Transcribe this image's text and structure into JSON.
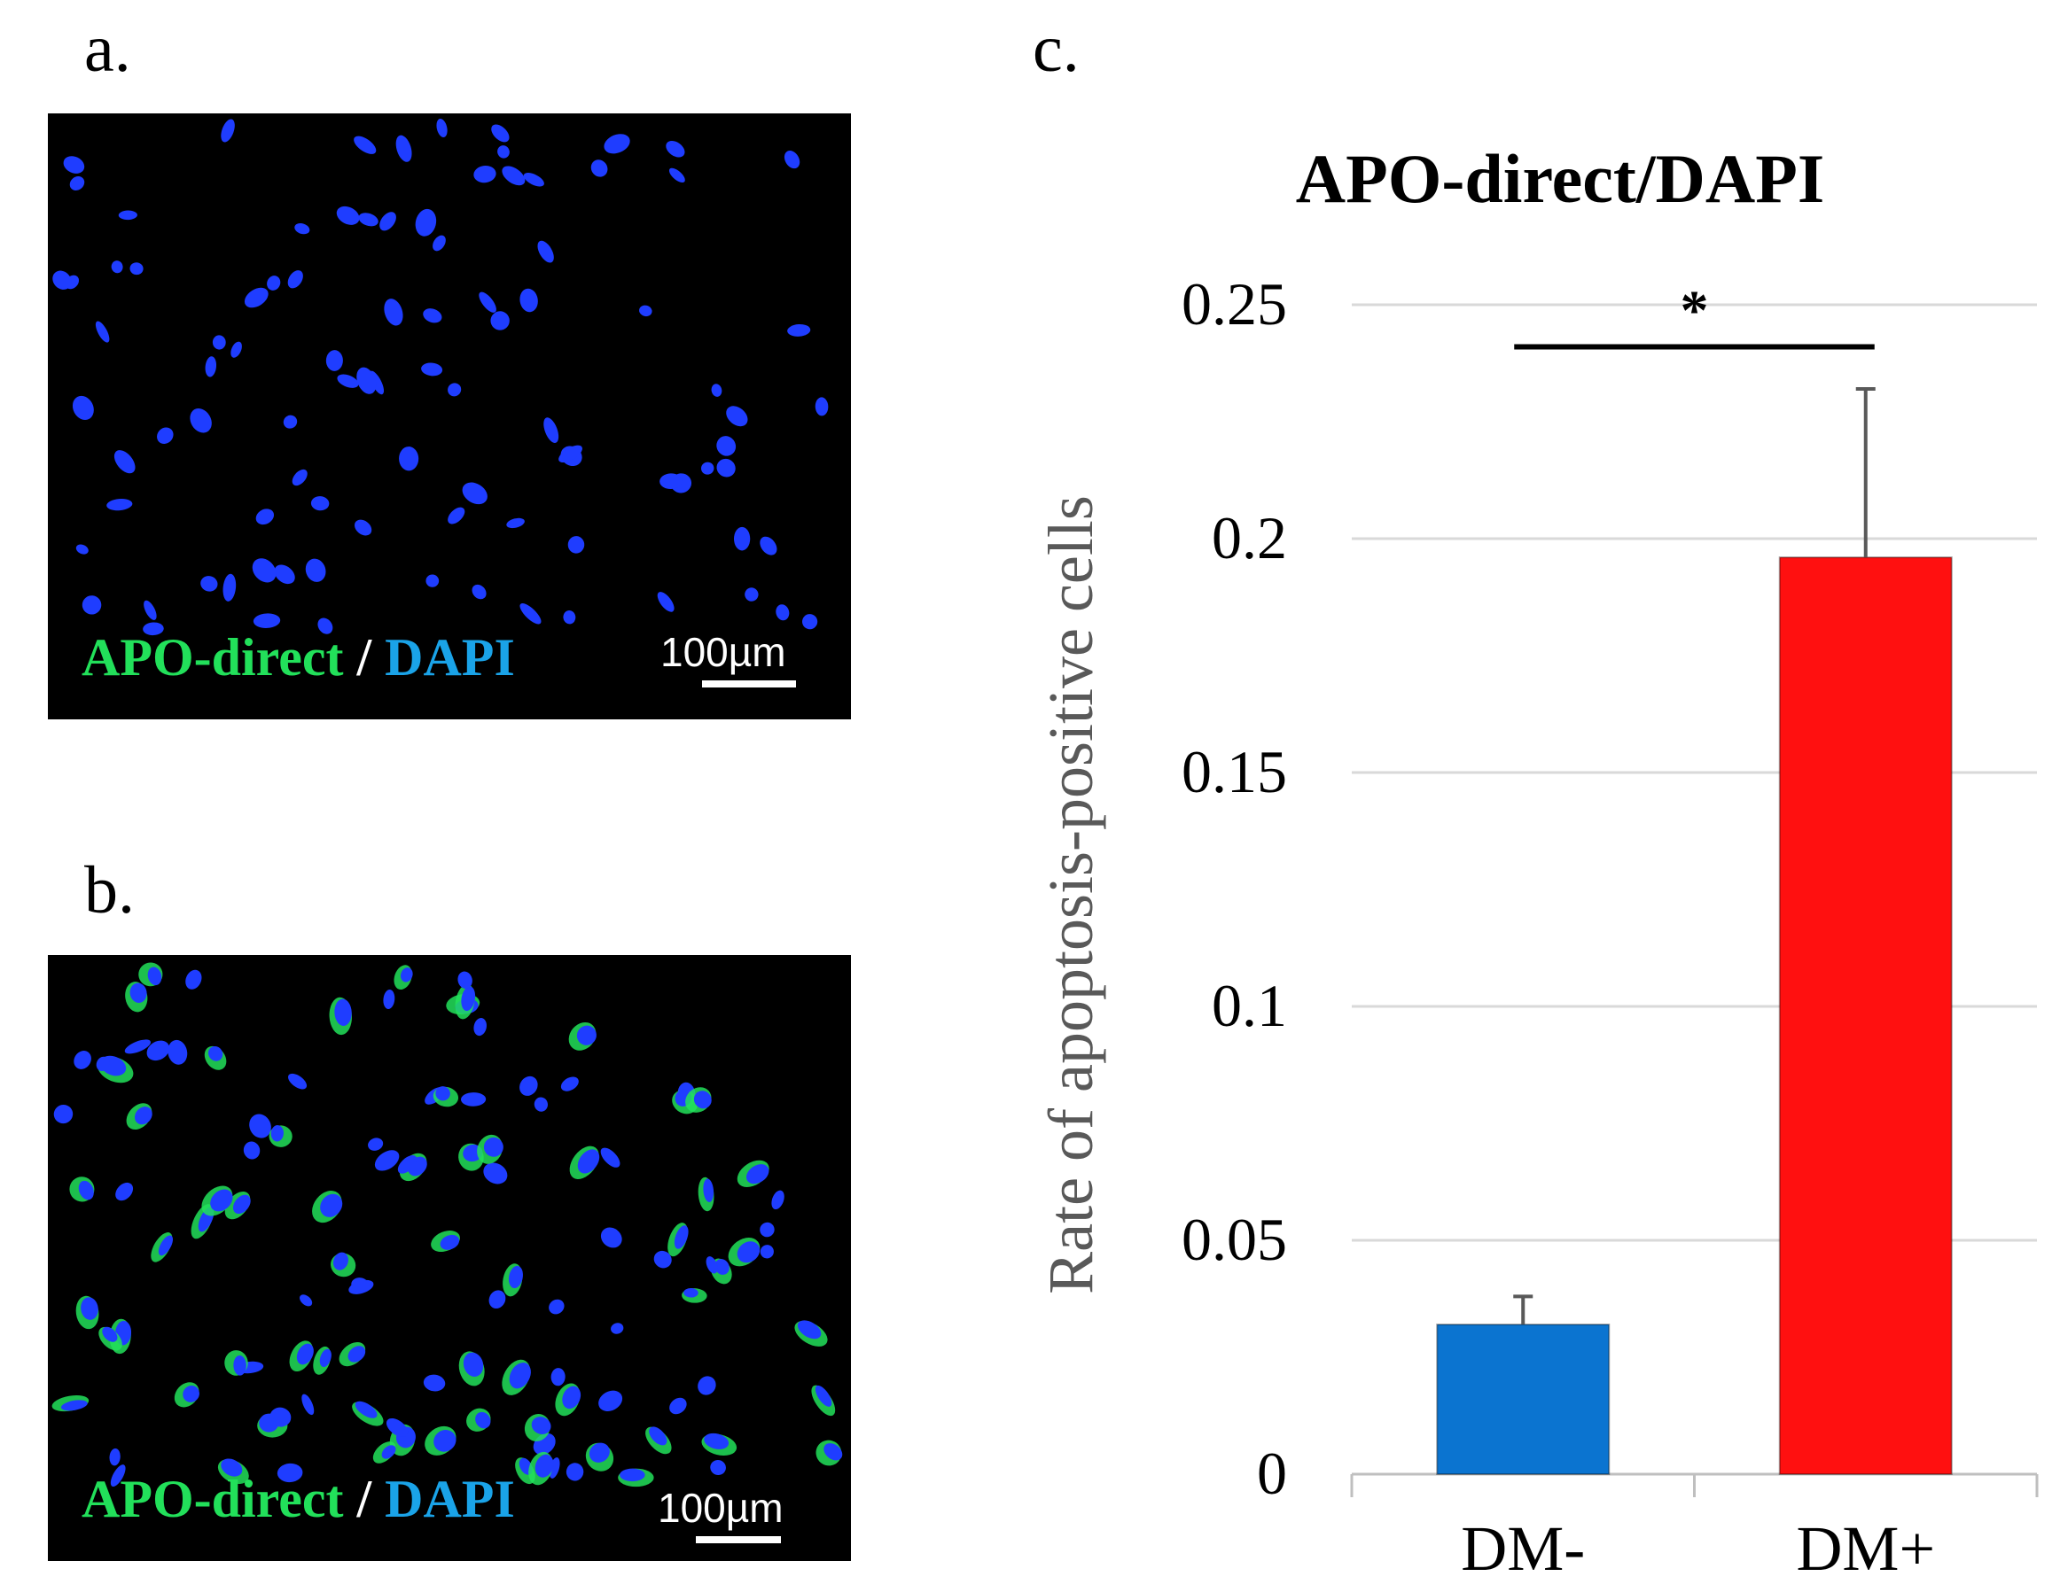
{
  "panels": {
    "a": {
      "letter": "a.",
      "label_green": "APO-direct",
      "label_sep": " / ",
      "label_blue": "DAPI",
      "scale_bar": "100µm"
    },
    "b": {
      "letter": "b.",
      "label_green": "APO-direct",
      "label_sep": " / ",
      "label_blue": "DAPI",
      "scale_bar": "100µm"
    },
    "c": {
      "letter": "c."
    }
  },
  "colors": {
    "green_stain": "#22e05a",
    "blue_stain": "#1aa3e8",
    "nucleus": "#1f3dff",
    "bar_dm_minus": "#0b74d0",
    "bar_dm_plus": "#ff1010",
    "grid": "#d9d9d9"
  },
  "chart_data": {
    "type": "bar",
    "title": "APO-direct/DAPI",
    "ylabel": "Rate of apoptosis-positive cells",
    "xlabel": "",
    "categories": [
      "DM-",
      "DM+"
    ],
    "values": [
      0.032,
      0.196
    ],
    "error_bars": [
      0.006,
      0.036
    ],
    "ylim": [
      0,
      0.25
    ],
    "yticks": [
      0,
      0.05,
      0.1,
      0.15,
      0.2,
      0.25
    ],
    "ytick_labels": [
      "0",
      "0.05",
      "0.1",
      "0.15",
      "0.2",
      "0.25"
    ],
    "grid": true,
    "significance": {
      "between": [
        "DM-",
        "DM+"
      ],
      "marker": "*"
    }
  }
}
